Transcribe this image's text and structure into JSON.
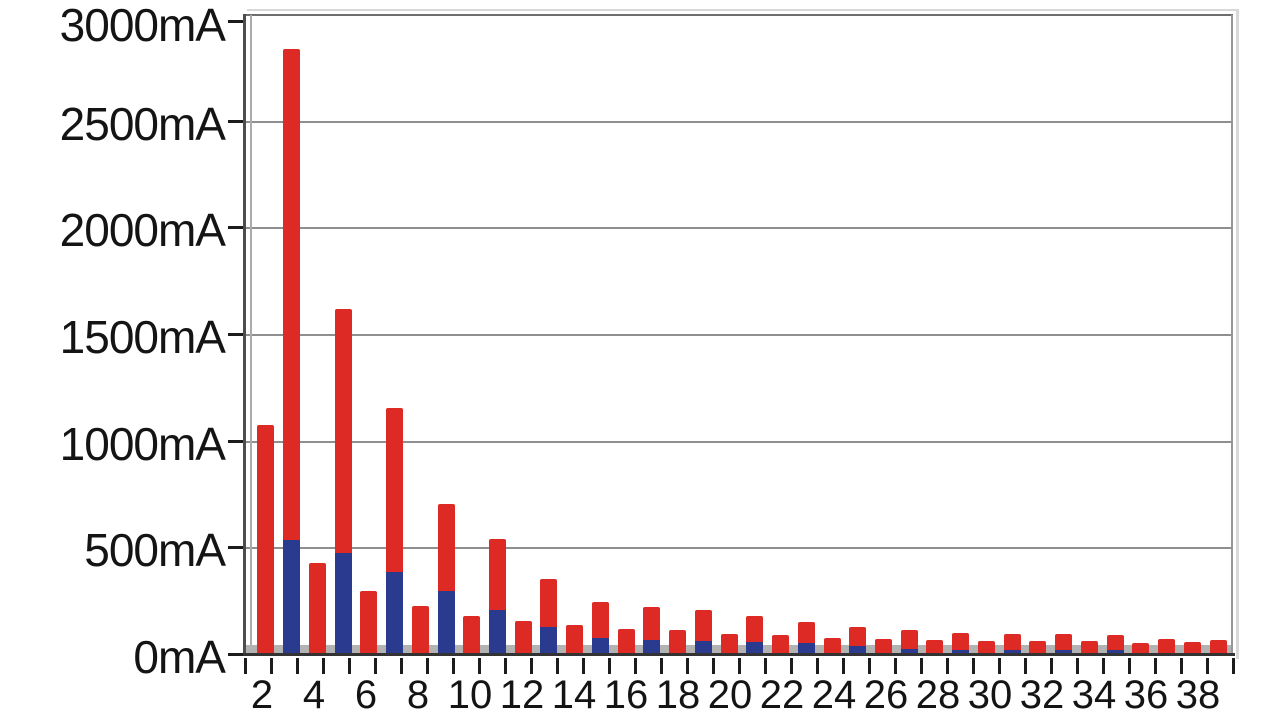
{
  "chart_data": {
    "type": "bar",
    "stacked": true,
    "title": "",
    "xlabel": "",
    "ylabel": "mA",
    "ylim": [
      0,
      3000
    ],
    "ytick_step": 500,
    "ytick_labels": [
      "0mA",
      "500mA",
      "1000mA",
      "1500mA",
      "2000mA",
      "2500mA",
      "3000mA"
    ],
    "x": [
      2,
      3,
      4,
      5,
      6,
      7,
      8,
      9,
      10,
      11,
      12,
      13,
      14,
      15,
      16,
      17,
      18,
      19,
      20,
      21,
      22,
      23,
      24,
      25,
      26,
      27,
      28,
      29,
      30,
      31,
      32,
      33,
      34,
      35,
      36,
      37,
      38,
      39
    ],
    "xtick_labels": [
      "2",
      "4",
      "6",
      "8",
      "10",
      "12",
      "14",
      "16",
      "18",
      "20",
      "22",
      "24",
      "26",
      "28",
      "30",
      "32",
      "34",
      "36",
      "38"
    ],
    "grid": true,
    "legend_position": "none",
    "series": [
      {
        "name": "blue-bottom-segment",
        "color": "#2a3a8e",
        "values": [
          0,
          540,
          0,
          480,
          0,
          390,
          0,
          300,
          0,
          210,
          0,
          130,
          0,
          80,
          0,
          70,
          0,
          65,
          0,
          60,
          0,
          55,
          0,
          40,
          0,
          30,
          0,
          25,
          0,
          25,
          0,
          25,
          0,
          22,
          0,
          0,
          0,
          0
        ]
      },
      {
        "name": "red-top-segment",
        "color": "#dd2a25",
        "values": [
          1080,
          2300,
          430,
          1140,
          300,
          770,
          230,
          410,
          185,
          335,
          160,
          225,
          140,
          170,
          120,
          155,
          115,
          145,
          100,
          125,
          95,
          100,
          80,
          90,
          75,
          85,
          70,
          80,
          65,
          75,
          65,
          75,
          65,
          73,
          55,
          75,
          60,
          70
        ]
      }
    ],
    "totals_mA": [
      1080,
      2840,
      430,
      1620,
      300,
      1160,
      230,
      710,
      185,
      545,
      160,
      355,
      140,
      250,
      120,
      225,
      115,
      210,
      100,
      185,
      95,
      155,
      80,
      130,
      75,
      115,
      70,
      105,
      65,
      100,
      65,
      100,
      65,
      95,
      55,
      75,
      60,
      70
    ]
  },
  "colors": {
    "bar_red": "#dd2a25",
    "bar_blue": "#2a3a8e",
    "gridline": "#8f8f8f",
    "axis": "#333333",
    "wall_light": "#ababab",
    "floor": "#b3b3b3",
    "text": "#141414",
    "background": "#ffffff"
  }
}
